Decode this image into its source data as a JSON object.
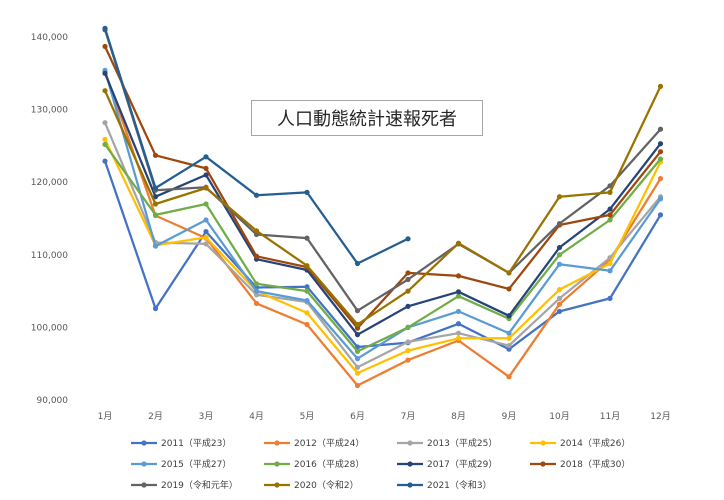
{
  "chart_data": {
    "type": "line",
    "title": "人口動態統計速報死者",
    "xlabel": "",
    "ylabel": "",
    "ylim": [
      90000,
      140000
    ],
    "yticks": [
      "90,000",
      "100,000",
      "110,000",
      "120,000",
      "130,000",
      "140,000"
    ],
    "ytick_values": [
      90000,
      100000,
      110000,
      120000,
      130000,
      140000
    ],
    "categories": [
      "1月",
      "2月",
      "3月",
      "4月",
      "5月",
      "6月",
      "7月",
      "8月",
      "9月",
      "10月",
      "11月",
      "12月"
    ],
    "grid": false,
    "legend_position": "bottom",
    "series": [
      {
        "name": "2011（平成23）",
        "color": "#4472C4",
        "values": [
          122900,
          102600,
          113200,
          105500,
          105600,
          97300,
          97900,
          100500,
          97000,
          102200,
          104000,
          115500
        ]
      },
      {
        "name": "2012（平成24）",
        "color": "#ED7D31",
        "values": [
          135300,
          115400,
          112300,
          103300,
          100400,
          92000,
          95500,
          98200,
          93200,
          103200,
          109300,
          120500
        ]
      },
      {
        "name": "2013（平成25）",
        "color": "#A5A5A5",
        "values": [
          128200,
          111700,
          111500,
          104500,
          103500,
          94500,
          98000,
          99200,
          97500,
          104000,
          109600,
          118000
        ]
      },
      {
        "name": "2014（平成26）",
        "color": "#FFC000",
        "values": [
          125900,
          111300,
          112400,
          105000,
          102000,
          93700,
          96800,
          98500,
          98500,
          105200,
          108800,
          122800
        ]
      },
      {
        "name": "2015（平成27）",
        "color": "#5B9BD5",
        "values": [
          135400,
          111200,
          114800,
          105000,
          103700,
          95700,
          100000,
          102200,
          99200,
          108700,
          107800,
          117700
        ]
      },
      {
        "name": "2016（平成28）",
        "color": "#70AD47",
        "values": [
          125200,
          115500,
          117000,
          106000,
          105000,
          96700,
          100000,
          104300,
          101200,
          110000,
          114800,
          123200
        ]
      },
      {
        "name": "2017（平成29）",
        "color": "#264478",
        "values": [
          135000,
          118000,
          121000,
          109400,
          107900,
          99000,
          102900,
          104900,
          101600,
          111000,
          116300,
          125300
        ]
      },
      {
        "name": "2018（平成30）",
        "color": "#9E480E",
        "values": [
          138700,
          123700,
          121900,
          109800,
          108300,
          99900,
          107500,
          107100,
          105300,
          114100,
          115500,
          124200
        ]
      },
      {
        "name": "2019（令和元年）",
        "color": "#636363",
        "values": [
          141000,
          118900,
          119300,
          112800,
          112300,
          102300,
          106600,
          111500,
          107500,
          114300,
          119500,
          127300
        ]
      },
      {
        "name": "2020（令和2）",
        "color": "#997300",
        "values": [
          132600,
          117000,
          119200,
          113300,
          108500,
          100400,
          105000,
          111600,
          107500,
          118000,
          118600,
          133200
        ]
      },
      {
        "name": "2021（令和3）",
        "color": "#255E91",
        "values": [
          141200,
          119200,
          123500,
          118200,
          118600,
          108800,
          112200,
          null,
          null,
          null,
          null,
          null
        ]
      }
    ]
  }
}
